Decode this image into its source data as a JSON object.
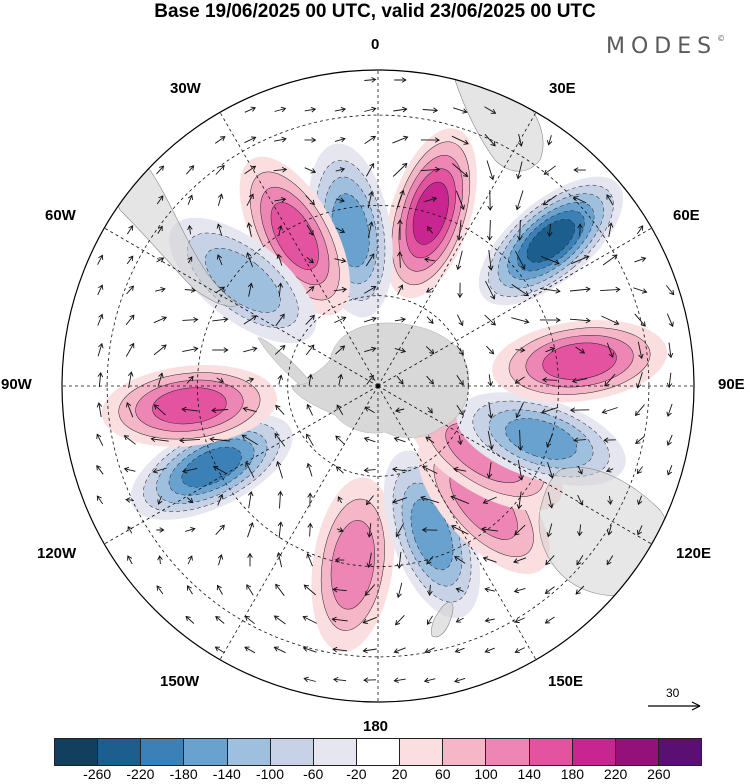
{
  "title": "Base 19/06/2025 00 UTC, valid 23/06/2025 00 UTC",
  "brand": "MODES",
  "brand_mark": "©",
  "longitude_labels": {
    "lon_0": "0",
    "lon_30e": "30E",
    "lon_60e": "60E",
    "lon_90e": "90E",
    "lon_120e": "120E",
    "lon_150e": "150E",
    "lon_180": "180",
    "lon_150w": "150W",
    "lon_120w": "120W",
    "lon_90w": "90W",
    "lon_60w": "60W",
    "lon_30w": "30W"
  },
  "reference_vector": "30",
  "colorbar": {
    "colors": [
      "#123f5e",
      "#1c5f8e",
      "#3b81b8",
      "#6aa2cf",
      "#9fbfdf",
      "#c7d2e7",
      "#e6e6f1",
      "#ffffff",
      "#fbdfe0",
      "#f5b6c8",
      "#ee86b5",
      "#e3539f",
      "#c82590",
      "#95117a",
      "#5b0f72"
    ],
    "tick_labels": [
      "-260",
      "-220",
      "-180",
      "-140",
      "-100",
      "-60",
      "-20",
      "20",
      "60",
      "100",
      "140",
      "180",
      "220",
      "260"
    ]
  },
  "anomaly_centers": [
    {
      "lon": -64,
      "lat": -49,
      "value": -180
    },
    {
      "lon": -84,
      "lat": -48,
      "value": 150
    },
    {
      "lon": -8,
      "lat": -50,
      "value": 110
    },
    {
      "lon": 20,
      "lat": -55,
      "value": -150
    },
    {
      "lon": 42,
      "lat": -55,
      "value": 100
    },
    {
      "lon": 58,
      "lat": -62,
      "value": 120
    },
    {
      "lon": 72,
      "lat": -52,
      "value": -170
    },
    {
      "lon": 97,
      "lat": -45,
      "value": 150
    },
    {
      "lon": 130,
      "lat": -40,
      "value": -240
    },
    {
      "lon": 163,
      "lat": -50,
      "value": 210
    },
    {
      "lon": -170,
      "lat": -55,
      "value": -170
    },
    {
      "lon": -151,
      "lat": -52,
      "value": 150
    },
    {
      "lon": -128,
      "lat": -52,
      "value": -120
    }
  ]
}
